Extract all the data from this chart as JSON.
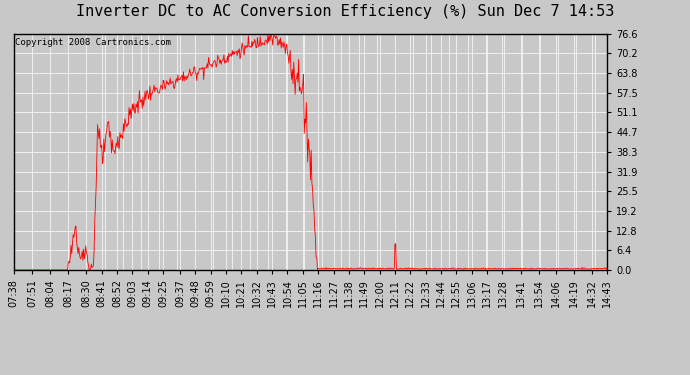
{
  "title": "Inverter DC to AC Conversion Efficiency (%) Sun Dec 7 14:53",
  "copyright": "Copyright 2008 Cartronics.com",
  "y_ticks": [
    0.0,
    6.4,
    12.8,
    19.2,
    25.5,
    31.9,
    38.3,
    44.7,
    51.1,
    57.5,
    63.8,
    70.2,
    76.6
  ],
  "x_labels": [
    "07:38",
    "07:51",
    "08:04",
    "08:17",
    "08:30",
    "08:41",
    "08:52",
    "09:03",
    "09:14",
    "09:25",
    "09:37",
    "09:48",
    "09:59",
    "10:10",
    "10:21",
    "10:32",
    "10:43",
    "10:54",
    "11:05",
    "11:16",
    "11:27",
    "11:38",
    "11:49",
    "12:00",
    "12:11",
    "12:22",
    "12:33",
    "12:44",
    "12:55",
    "13:06",
    "13:17",
    "13:28",
    "13:41",
    "13:54",
    "14:06",
    "14:19",
    "14:32",
    "14:43"
  ],
  "line_color": "#ff0000",
  "bg_color": "#c8c8c8",
  "plot_bg_color": "#c8c8c8",
  "grid_color": "#ffffff",
  "title_fontsize": 11,
  "copyright_fontsize": 6.5,
  "tick_fontsize": 7,
  "y_max": 76.6,
  "y_min": 0.0
}
